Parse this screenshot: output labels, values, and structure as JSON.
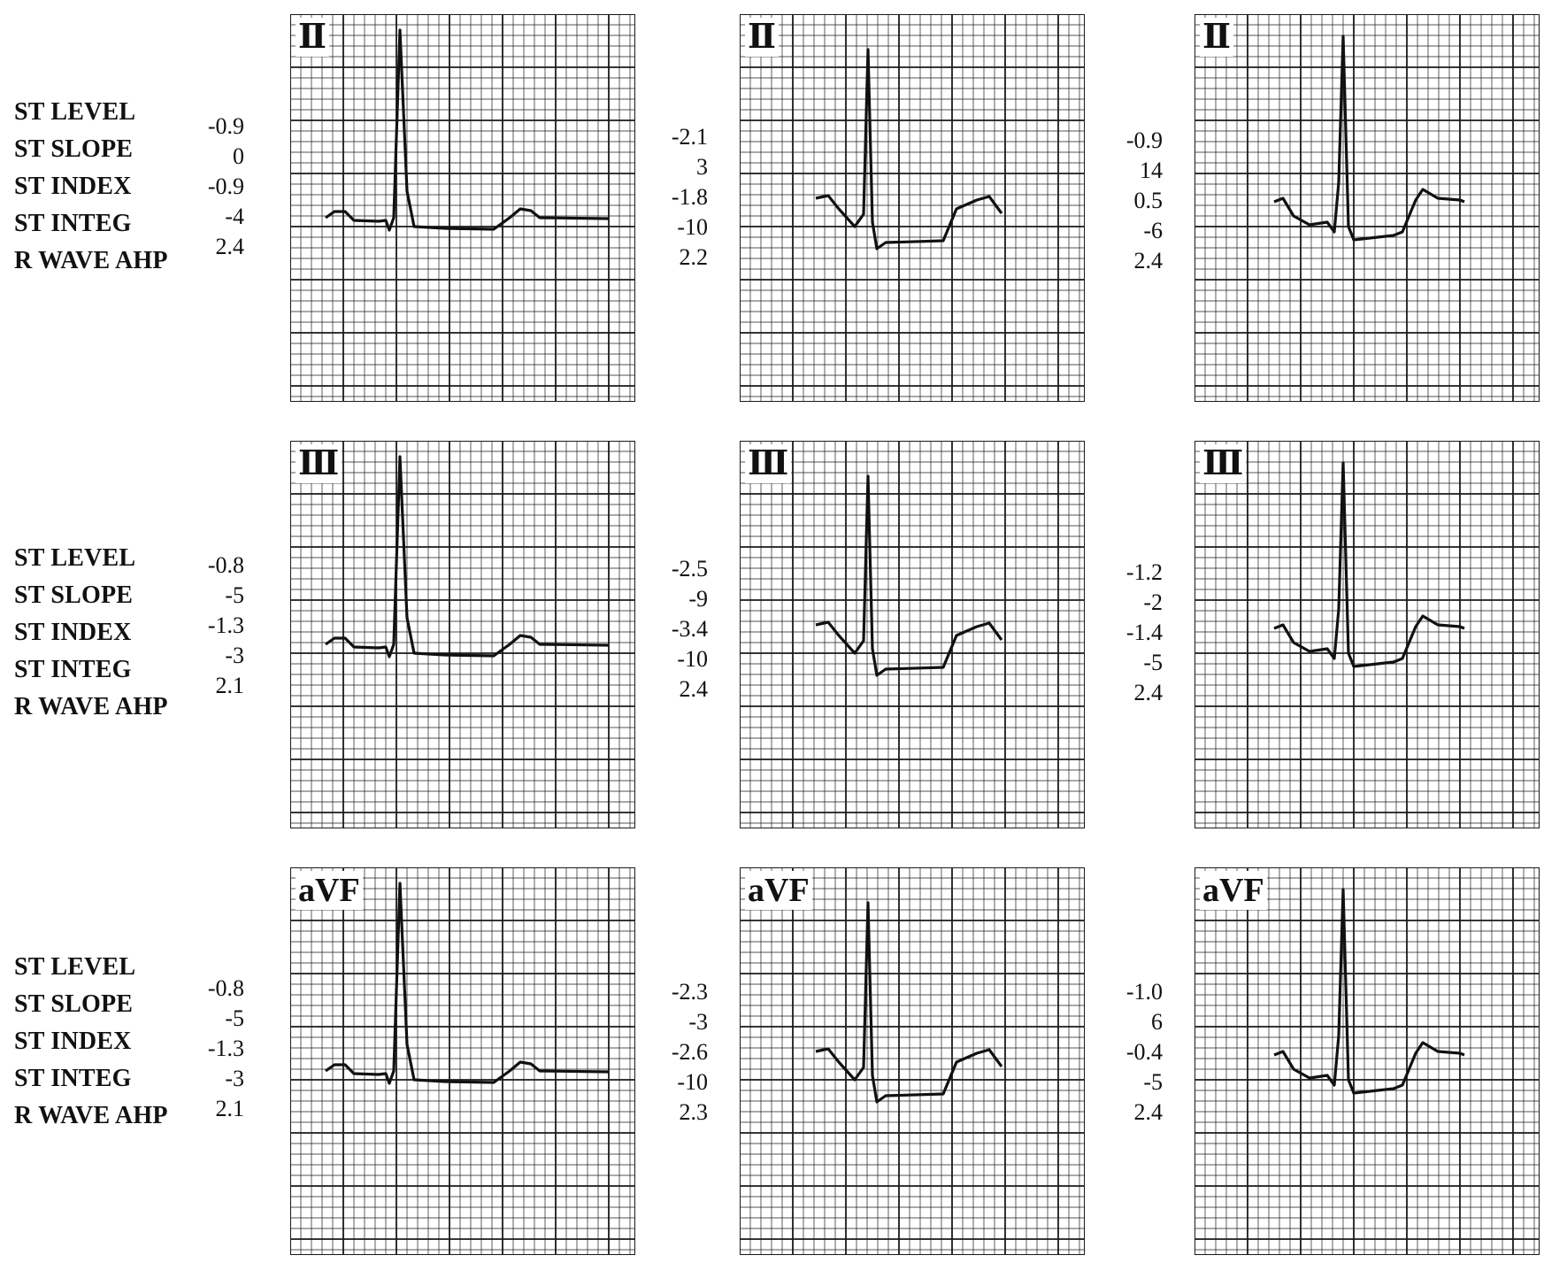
{
  "param_labels": [
    "ST LEVEL",
    "ST SLOPE",
    "ST INDEX",
    "ST INTEG",
    "R WAVE AHP"
  ],
  "rows": [
    {
      "lead": "Ⅱ",
      "panels": [
        {
          "values": [
            "-0.9",
            "0",
            "-0.9",
            "-4",
            "2.4"
          ]
        },
        {
          "values": [
            "-2.1",
            "3",
            "-1.8",
            "-10",
            "2.2"
          ]
        },
        {
          "values": [
            "-0.9",
            "14",
            "0.5",
            "-6",
            "2.4"
          ]
        }
      ]
    },
    {
      "lead": "Ⅲ",
      "panels": [
        {
          "values": [
            "-0.8",
            "-5",
            "-1.3",
            "-3",
            "2.1"
          ]
        },
        {
          "values": [
            "-2.5",
            "-9",
            "-3.4",
            "-10",
            "2.4"
          ]
        },
        {
          "values": [
            "-1.2",
            "-2",
            "-1.4",
            "-5",
            "2.4"
          ]
        }
      ]
    },
    {
      "lead": "aVF",
      "panels": [
        {
          "values": [
            "-0.8",
            "-5",
            "-1.3",
            "-3",
            "2.1"
          ]
        },
        {
          "values": [
            "-2.3",
            "-3",
            "-2.6",
            "-10",
            "2.3"
          ]
        },
        {
          "values": [
            "-1.0",
            "6",
            "-0.4",
            "-5",
            "2.4"
          ]
        }
      ]
    }
  ],
  "colors": {
    "grid": "#1a1a1a",
    "trace": "#111111",
    "background": "#ffffff"
  }
}
